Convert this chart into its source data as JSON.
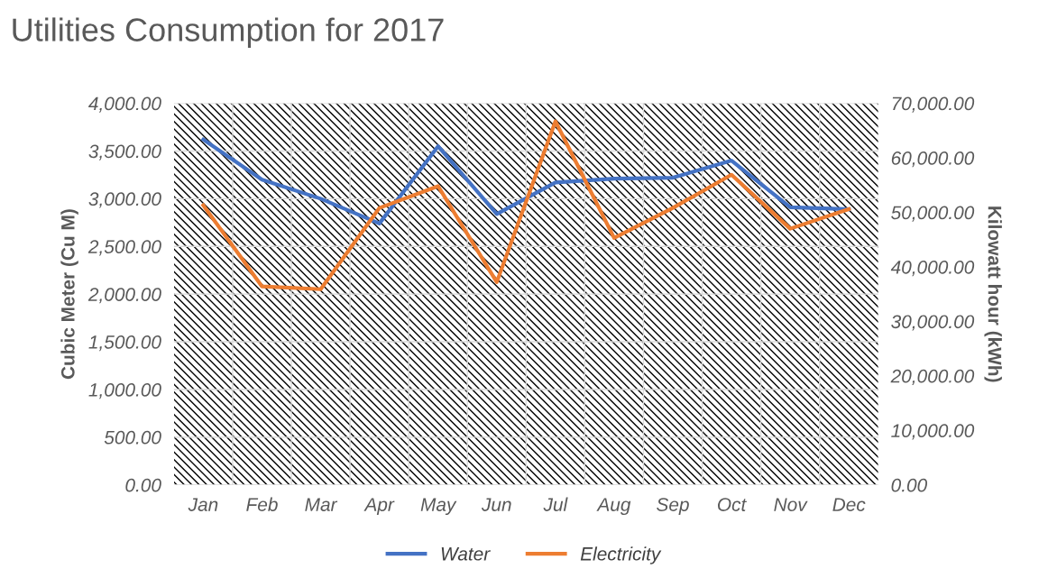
{
  "chart_data": {
    "type": "line",
    "title": "Utilities Consumption for 2017",
    "ylabel": "Cubic Meter (Cu M)",
    "y2label": "Kilowatt hour (kWh)",
    "categories": [
      "Jan",
      "Feb",
      "Mar",
      "Apr",
      "May",
      "Jun",
      "Jul",
      "Aug",
      "Sep",
      "Oct",
      "Nov",
      "Dec"
    ],
    "series": [
      {
        "name": "Water",
        "color": "#4472c4",
        "values": [
          3620,
          3200,
          3000,
          2740,
          3550,
          2840,
          3170,
          3210,
          3220,
          3400,
          2910,
          2890
        ]
      },
      {
        "name": "Electricity",
        "color": "#ed7d31",
        "axis": "y2",
        "values": [
          51300,
          36400,
          35900,
          50800,
          54800,
          37200,
          66700,
          45300,
          50800,
          56900,
          47000,
          50600
        ]
      }
    ],
    "ylim": [
      0,
      4000
    ],
    "yticks": [
      {
        "value": 0,
        "label": "0.00"
      },
      {
        "value": 500,
        "label": "500.00"
      },
      {
        "value": 1000,
        "label": "1,000.00"
      },
      {
        "value": 1500,
        "label": "1,500.00"
      },
      {
        "value": 2000,
        "label": "2,000.00"
      },
      {
        "value": 2500,
        "label": "2,500.00"
      },
      {
        "value": 3000,
        "label": "3,000.00"
      },
      {
        "value": 3500,
        "label": "3,500.00"
      },
      {
        "value": 4000,
        "label": "4,000.00"
      }
    ],
    "y2lim": [
      0,
      70000
    ],
    "y2ticks": [
      {
        "value": 0,
        "label": "0.00"
      },
      {
        "value": 10000,
        "label": "10,000.00"
      },
      {
        "value": 20000,
        "label": "20,000.00"
      },
      {
        "value": 30000,
        "label": "30,000.00"
      },
      {
        "value": 40000,
        "label": "40,000.00"
      },
      {
        "value": 50000,
        "label": "50,000.00"
      },
      {
        "value": 60000,
        "label": "60,000.00"
      },
      {
        "value": 70000,
        "label": "70,000.00"
      }
    ],
    "grid": true,
    "legend": "bottom",
    "marker": "none",
    "line_style": "solid"
  }
}
